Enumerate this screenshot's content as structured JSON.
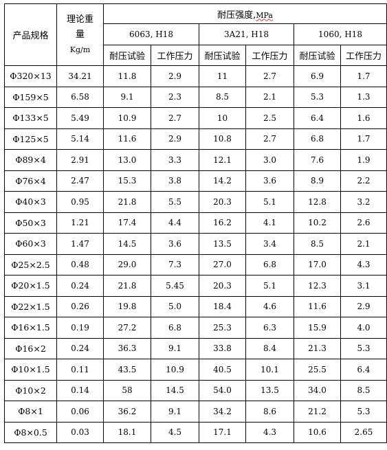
{
  "header": {
    "spec": "产品规格",
    "weight_line1": "理论重",
    "weight_line2": "量",
    "weight_unit": "Kg/m",
    "strength_prefix": "耐压强度,",
    "strength_unit": "MPa",
    "alloys": [
      "6063,   H18",
      "3A21,   H18",
      "1060,   H18"
    ],
    "sub": [
      "耐压试验",
      "工作压力",
      "耐压试验",
      "工作压力",
      "耐压试验",
      "工作压力"
    ]
  },
  "rows": [
    [
      "Φ320×13",
      "34.21",
      "11.8",
      "2.9",
      "11",
      "2.7",
      "6.9",
      "1.7"
    ],
    [
      "Φ159×5",
      "6.58",
      "9.1",
      "2.3",
      "8.5",
      "2.1",
      "5.3",
      "1.3"
    ],
    [
      "Φ133×5",
      "5.49",
      "10.9",
      "2.7",
      "10",
      "2.5",
      "6.4",
      "1.6"
    ],
    [
      "Φ125×5",
      "5.14",
      "11.6",
      "2.9",
      "10.8",
      "2.7",
      "6.8",
      "1.7"
    ],
    [
      "Φ89×4",
      "2.91",
      "13.0",
      "3.3",
      "12.1",
      "3.0",
      "7.6",
      "1.9"
    ],
    [
      "Φ76×4",
      "2.47",
      "15.3",
      "3.8",
      "14.2",
      "3.6",
      "8.9",
      "2.2"
    ],
    [
      "Φ40×3",
      "0.95",
      "21.8",
      "5.5",
      "20.3",
      "5.1",
      "12.8",
      "3.2"
    ],
    [
      "Φ50×3",
      "1.21",
      "17.4",
      "4.4",
      "16.2",
      "4.1",
      "10.2",
      "2.6"
    ],
    [
      "Φ60×3",
      "1.47",
      "14.5",
      "3.6",
      "13.5",
      "3.4",
      "8.5",
      "2.1"
    ],
    [
      "Φ25×2.5",
      "0.48",
      "29.0",
      "7.3",
      "27.0",
      "6.8",
      "17.0",
      "4.3"
    ],
    [
      "Φ20×1.5",
      "0.24",
      "21.8",
      "5.45",
      "20.3",
      "5.1",
      "12.3",
      "3.1"
    ],
    [
      "Φ22×1.5",
      "0.26",
      "19.8",
      "5.0",
      "18.4",
      "4.6",
      "11.6",
      "2.9"
    ],
    [
      "Φ16×1.5",
      "0.19",
      "27.2",
      "6.8",
      "25.3",
      "6.3",
      "15.9",
      "4.0"
    ],
    [
      "Φ16×2",
      "0.24",
      "36.3",
      "9.1",
      "33.8",
      "8.4",
      "21.3",
      "5.3"
    ],
    [
      "Φ10×1.5",
      "0.11",
      "43.5",
      "10.9",
      "40.5",
      "10.1",
      "25.5",
      "6.4"
    ],
    [
      "Φ10×2",
      "0.14",
      "58",
      "14.5",
      "54.0",
      "13.5",
      "34.0",
      "8.5"
    ],
    [
      "Φ8×1",
      "0.06",
      "36.2",
      "9.1",
      "34.2",
      "8.6",
      "21.2",
      "5.3"
    ],
    [
      "Φ8×0.5",
      "0.03",
      "18.1",
      "4.5",
      "17.1",
      "4.3",
      "10.6",
      "2.65"
    ]
  ]
}
